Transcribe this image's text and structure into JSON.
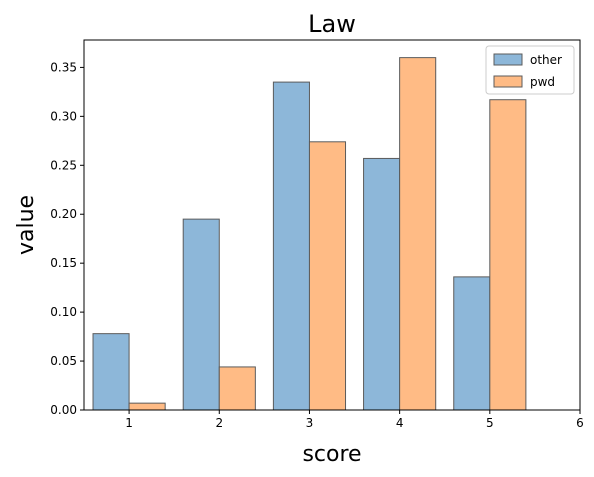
{
  "chart_data": {
    "type": "bar",
    "title": "Law",
    "xlabel": "score",
    "ylabel": "value",
    "categories": [
      1,
      2,
      3,
      4,
      5
    ],
    "series": [
      {
        "name": "other",
        "color": "#8db7d9",
        "values": [
          0.078,
          0.195,
          0.335,
          0.257,
          0.136
        ]
      },
      {
        "name": "pwd",
        "color": "#ffbb85",
        "values": [
          0.007,
          0.044,
          0.274,
          0.36,
          0.317
        ]
      }
    ],
    "xlim": [
      0.5,
      6
    ],
    "ylim": [
      0,
      0.378
    ],
    "xticks": [
      1,
      2,
      3,
      4,
      5,
      6
    ],
    "xtick_labels": [
      "1",
      "2",
      "3",
      "4",
      "5",
      "6"
    ],
    "yticks": [
      0,
      0.05,
      0.1,
      0.15,
      0.2,
      0.25,
      0.3,
      0.35
    ],
    "ytick_labels": [
      "0.00",
      "0.05",
      "0.10",
      "0.15",
      "0.20",
      "0.25",
      "0.30",
      "0.35"
    ],
    "bar_width": 0.4,
    "grid": false,
    "legend_position": "top-right"
  }
}
